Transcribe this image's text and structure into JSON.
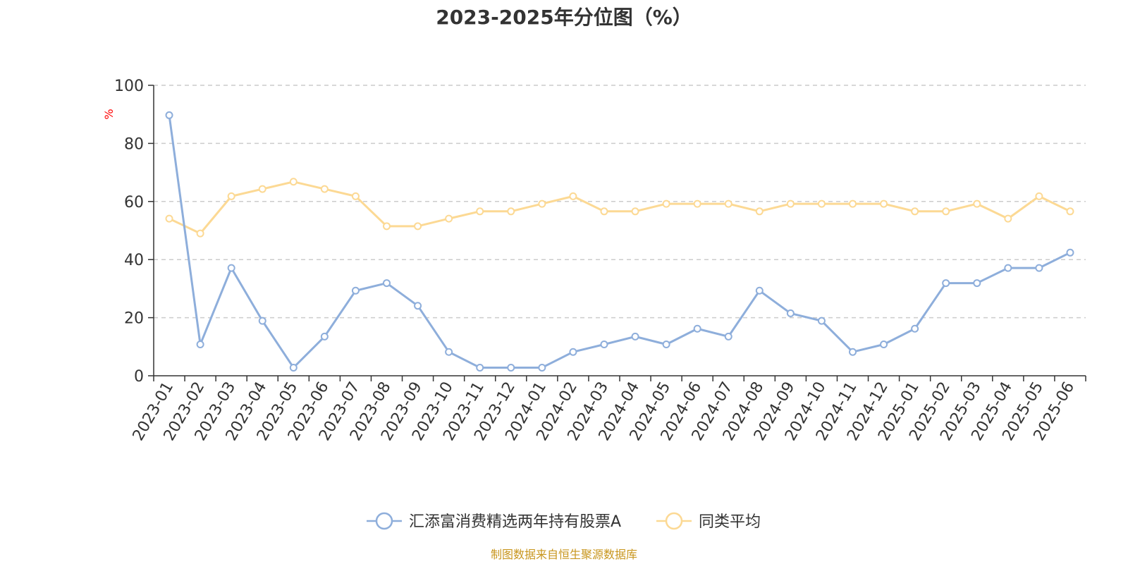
{
  "chart_data": {
    "type": "line",
    "title": "2023-2025年分位图（%）",
    "ylabel": "%",
    "xlabel": "",
    "ylim": [
      0,
      100
    ],
    "yticks": [
      0,
      20,
      40,
      60,
      80,
      100
    ],
    "grid": true,
    "legend_position": "bottom-center",
    "categories": [
      "2023-01",
      "2023-02",
      "2023-03",
      "2023-04",
      "2023-05",
      "2023-06",
      "2023-07",
      "2023-08",
      "2023-09",
      "2023-10",
      "2023-11",
      "2023-12",
      "2024-01",
      "2024-02",
      "2024-03",
      "2024-04",
      "2024-05",
      "2024-06",
      "2024-07",
      "2024-08",
      "2024-09",
      "2024-10",
      "2024-11",
      "2024-12",
      "2025-01",
      "2025-02",
      "2025-03",
      "2025-04",
      "2025-05",
      "2025-06"
    ],
    "series": [
      {
        "name": "汇添富消费精选两年持有股票A",
        "color": "#8eaedb",
        "values": [
          89.7,
          10.8,
          37.1,
          18.9,
          2.8,
          13.5,
          29.3,
          31.9,
          24.1,
          8.2,
          2.8,
          2.8,
          2.8,
          8.2,
          10.8,
          13.5,
          10.8,
          16.2,
          13.5,
          29.3,
          21.5,
          18.9,
          8.2,
          10.8,
          16.2,
          31.9,
          31.9,
          37.1,
          37.1,
          42.4
        ]
      },
      {
        "name": "同类平均",
        "color": "#fcd994",
        "values": [
          54.1,
          49.0,
          61.8,
          64.3,
          66.8,
          64.3,
          61.8,
          51.5,
          51.5,
          54.1,
          56.6,
          56.6,
          59.2,
          61.8,
          56.6,
          56.6,
          59.2,
          59.2,
          59.2,
          56.6,
          59.2,
          59.2,
          59.2,
          59.2,
          56.6,
          56.6,
          59.2,
          54.1,
          61.8,
          56.6
        ]
      }
    ]
  },
  "source_note": "制图数据来自恒生聚源数据库"
}
